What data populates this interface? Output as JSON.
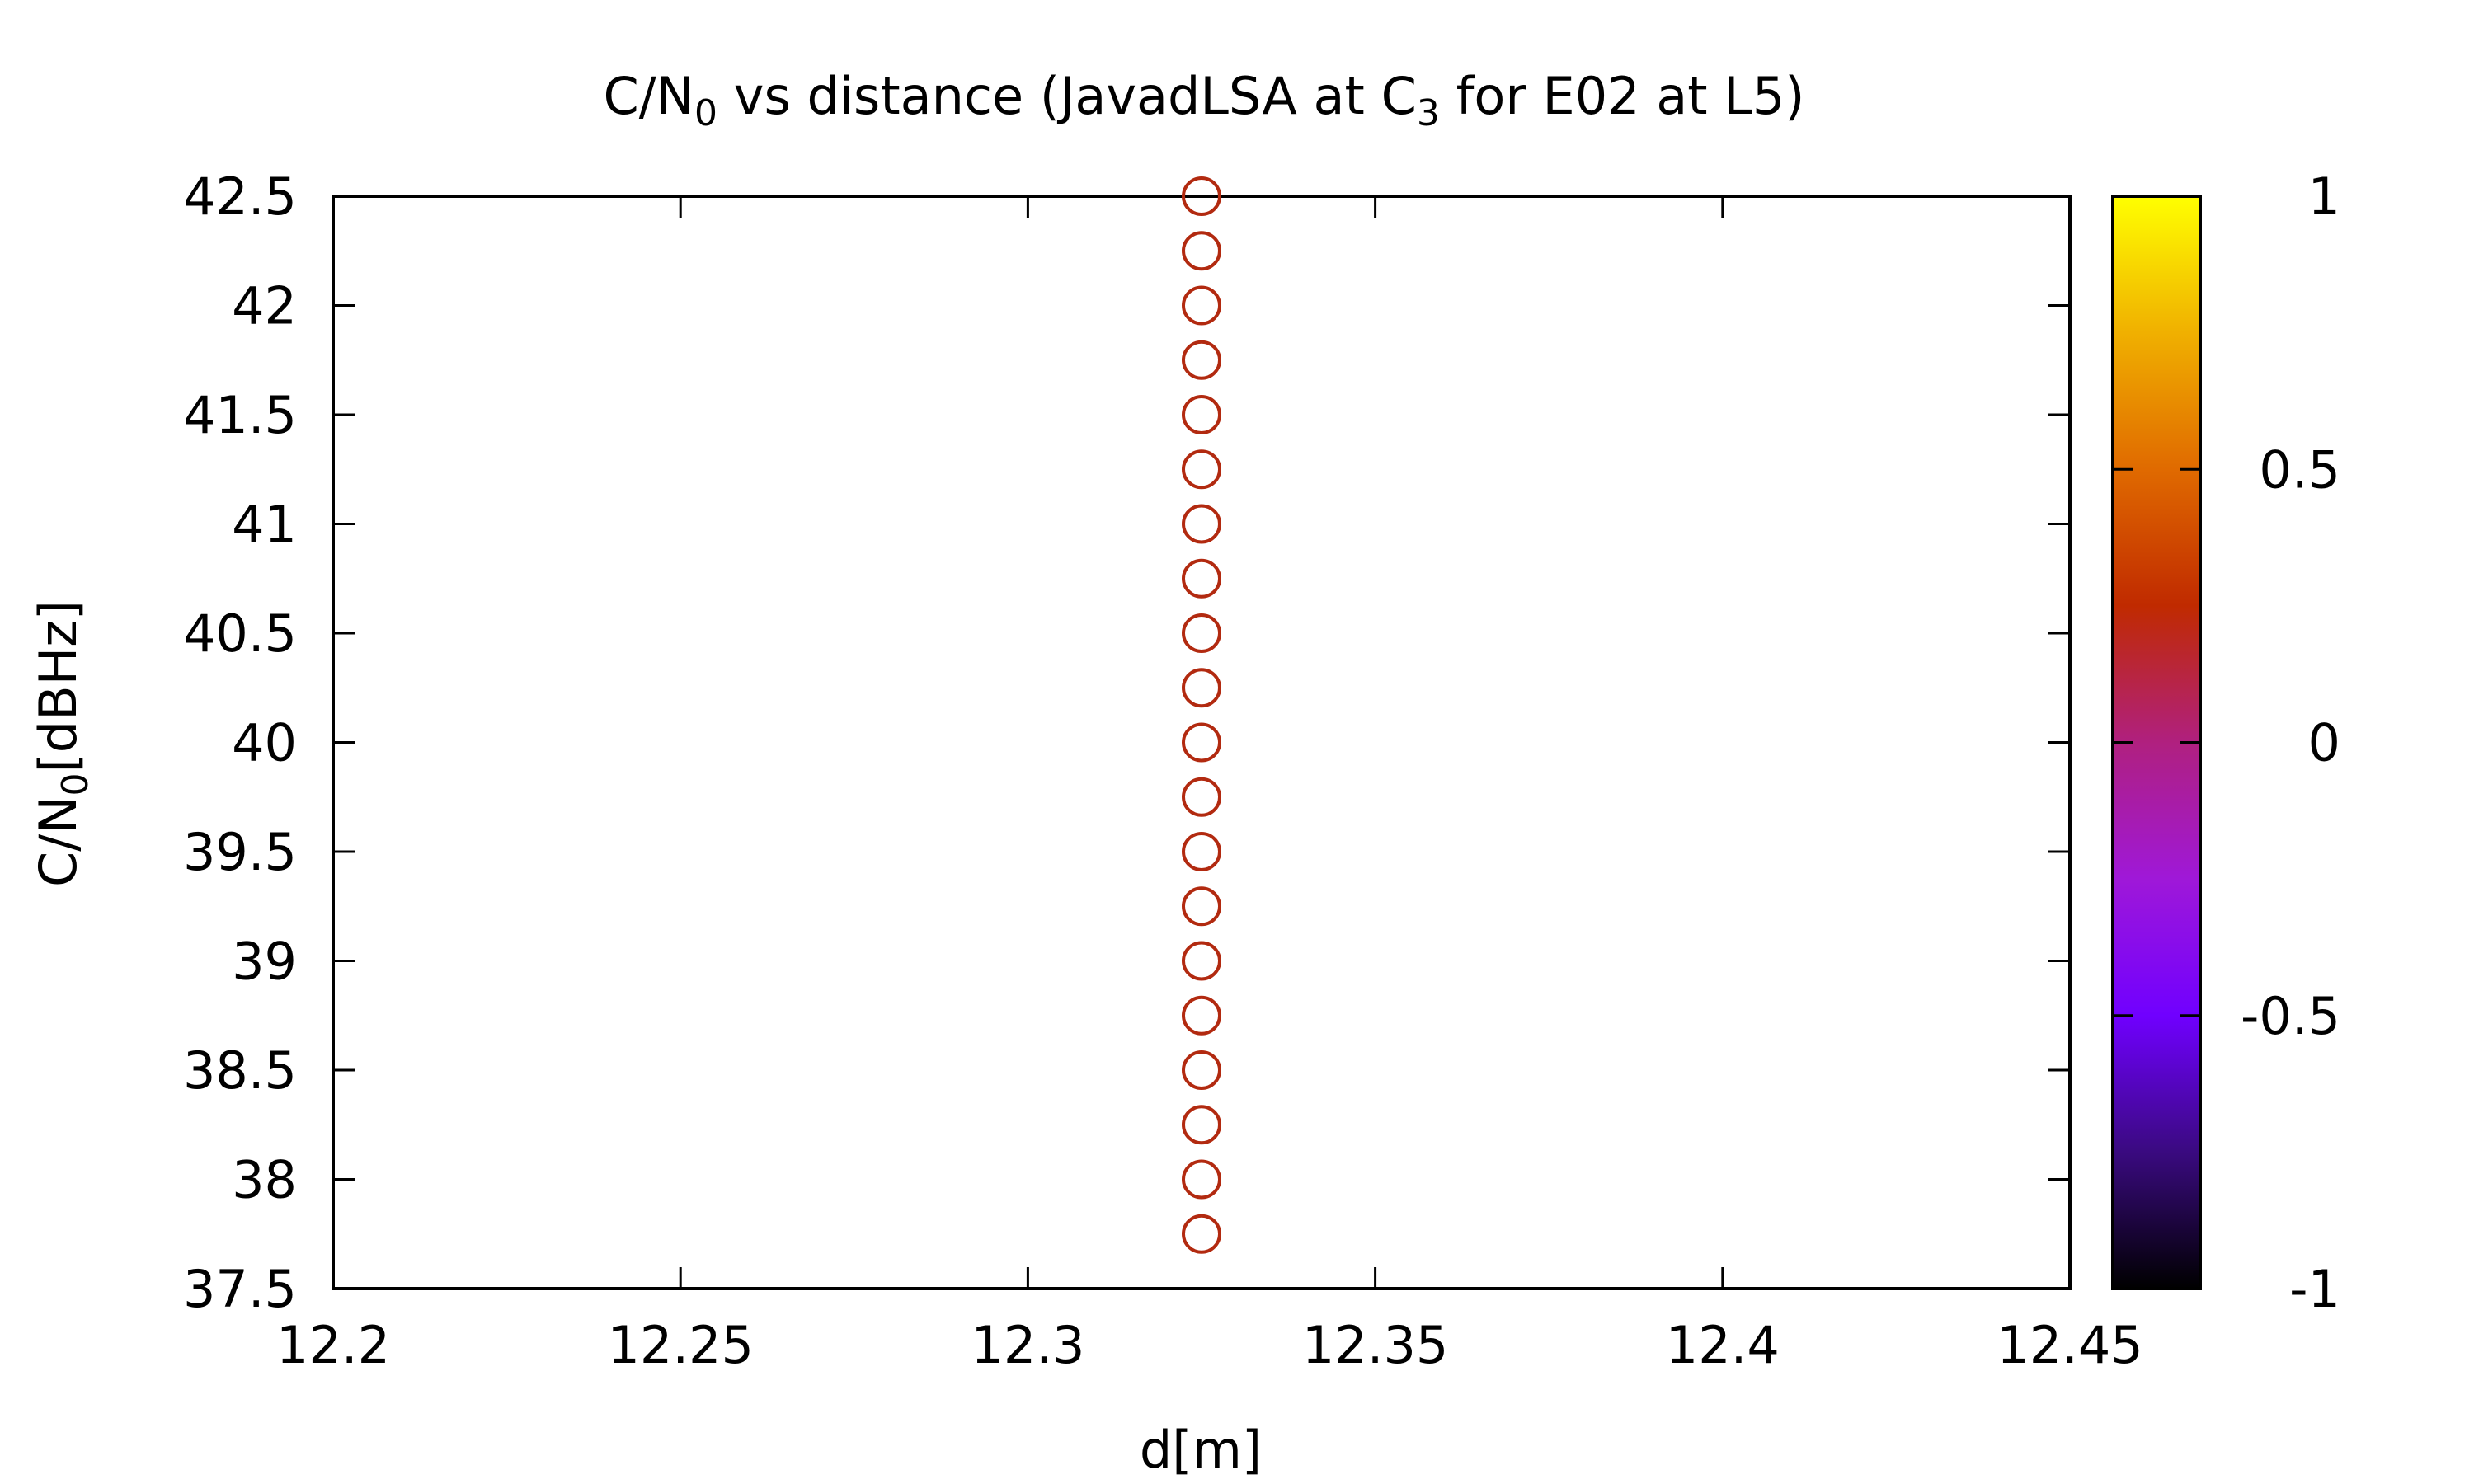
{
  "chart_data": {
    "type": "scatter",
    "title": {
      "main": "C/N",
      "sub": "0",
      "mid": " vs distance (JavadLSA at C",
      "sub2": "3",
      "end": " for E02 at L5)"
    },
    "xlabel": "d[m]",
    "ylabel": {
      "main": "C/N",
      "sub": "0",
      "end": "[dBHz]"
    },
    "xlim": [
      12.2,
      12.45
    ],
    "ylim": [
      37.5,
      42.5
    ],
    "xticks": [
      "12.2",
      "12.25",
      "12.3",
      "12.35",
      "12.4",
      "12.45"
    ],
    "yticks": [
      "37.5",
      "38",
      "38.5",
      "39",
      "39.5",
      "40",
      "40.5",
      "41",
      "41.5",
      "42",
      "42.5"
    ],
    "colorbar": {
      "range": [
        -1,
        1
      ],
      "ticks": [
        "-1",
        "-0.5",
        "0",
        "0.5",
        "1"
      ],
      "palette": [
        "#000000",
        "#3a0a80",
        "#7000ff",
        "#9f18d8",
        "#b0207f",
        "#c02a00",
        "#e06a00",
        "#f0b000",
        "#ffff00"
      ]
    },
    "marker": {
      "shape": "open-circle",
      "color": "#b22a10",
      "cb_value": 0
    },
    "series": [
      {
        "points": [
          {
            "x": 12.325,
            "y": 42.5
          },
          {
            "x": 12.325,
            "y": 42.25
          },
          {
            "x": 12.325,
            "y": 42.0
          },
          {
            "x": 12.325,
            "y": 41.75
          },
          {
            "x": 12.325,
            "y": 41.5
          },
          {
            "x": 12.325,
            "y": 41.25
          },
          {
            "x": 12.325,
            "y": 41.0
          },
          {
            "x": 12.325,
            "y": 40.75
          },
          {
            "x": 12.325,
            "y": 40.5
          },
          {
            "x": 12.325,
            "y": 40.25
          },
          {
            "x": 12.325,
            "y": 40.0
          },
          {
            "x": 12.325,
            "y": 39.75
          },
          {
            "x": 12.325,
            "y": 39.5
          },
          {
            "x": 12.325,
            "y": 39.25
          },
          {
            "x": 12.325,
            "y": 39.0
          },
          {
            "x": 12.325,
            "y": 38.75
          },
          {
            "x": 12.325,
            "y": 38.5
          },
          {
            "x": 12.325,
            "y": 38.25
          },
          {
            "x": 12.325,
            "y": 38.0
          },
          {
            "x": 12.325,
            "y": 37.75
          }
        ]
      }
    ]
  }
}
